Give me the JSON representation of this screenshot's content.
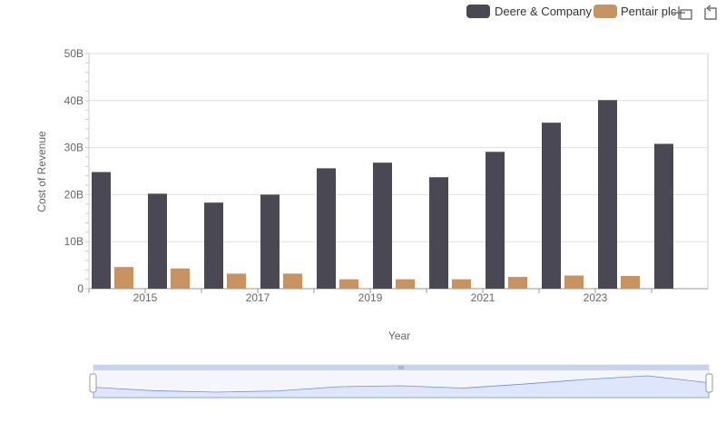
{
  "chart_data": {
    "type": "bar",
    "xlabel": "Year",
    "ylabel": "Cost of Revenue",
    "ylim": [
      0,
      50000000000
    ],
    "y_ticks": [
      "0",
      "10B",
      "20B",
      "30B",
      "40B",
      "50B"
    ],
    "x": [
      2014,
      2015,
      2016,
      2017,
      2018,
      2019,
      2020,
      2021,
      2022,
      2023,
      2024
    ],
    "x_tick_labels": [
      "2015",
      "2017",
      "2019",
      "2021",
      "2023"
    ],
    "grid": true,
    "legend_position": "top-right",
    "series": [
      {
        "name": "Deere & Company",
        "color": "#4a4953",
        "values": [
          24800000000,
          20200000000,
          18300000000,
          20000000000,
          25600000000,
          26800000000,
          23700000000,
          29100000000,
          35300000000,
          40100000000,
          30800000000
        ]
      },
      {
        "name": "Pentair plc",
        "color": "#c8935e",
        "values": [
          4600000000,
          4300000000,
          3200000000,
          3200000000,
          2000000000,
          2000000000,
          2000000000,
          2500000000,
          2800000000,
          2700000000,
          null
        ]
      }
    ]
  },
  "toolbar": {
    "zoom_icon": "zoom-icon",
    "reset_icon": "reset-zoom-icon"
  },
  "colors": {
    "grid": "#e0e0e0",
    "axis_text": "#666666",
    "navigator_fill": "#dde6fb",
    "navigator_line": "#6f8fdd"
  }
}
